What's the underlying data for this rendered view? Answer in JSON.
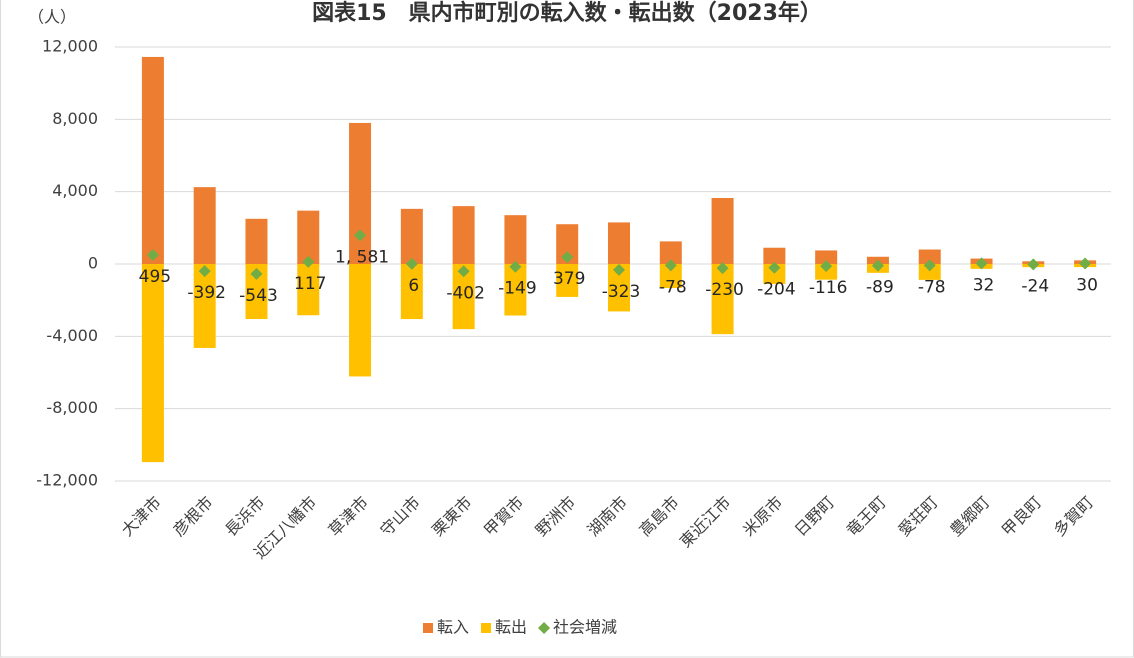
{
  "chart_data": {
    "type": "bar",
    "stacked": true,
    "title": "図表15　県内市町別の転入数・転出数（2023年）",
    "y_label": "（人）",
    "categories": [
      "大津市",
      "彦根市",
      "長浜市",
      "近江八幡市",
      "草津市",
      "守山市",
      "栗東市",
      "甲賀市",
      "野洲市",
      "湖南市",
      "高島市",
      "東近江市",
      "米原市",
      "日野町",
      "竜王町",
      "愛荘町",
      "豊郷町",
      "甲良町",
      "多賀町"
    ],
    "series": [
      {
        "name": "転入",
        "type": "bar",
        "color": "#ed7d31",
        "values": [
          11450,
          4250,
          2500,
          2950,
          7800,
          3050,
          3200,
          2700,
          2200,
          2300,
          1250,
          3650,
          900,
          750,
          400,
          800,
          300,
          150,
          200
        ]
      },
      {
        "name": "転出",
        "type": "bar",
        "color": "#ffc000",
        "values": [
          -10955,
          -4642,
          -3043,
          -2833,
          -6219,
          -3044,
          -3602,
          -2849,
          -1821,
          -2623,
          -1328,
          -3880,
          -1104,
          -866,
          -489,
          -878,
          -268,
          -174,
          -170
        ]
      },
      {
        "name": "社会増減",
        "type": "scatter",
        "color": "#70ad47",
        "values": [
          495,
          -392,
          -543,
          117,
          1581,
          6,
          -402,
          -149,
          379,
          -323,
          -78,
          -230,
          -204,
          -116,
          -89,
          -78,
          32,
          -24,
          30
        ],
        "value_labels": [
          "495",
          "-392",
          "-543",
          "117",
          "1, 581",
          "6",
          "-402",
          "-149",
          "379",
          "-323",
          "-78",
          "-230",
          "-204",
          "-116",
          "-89",
          "-78",
          "32",
          "-24",
          "30"
        ]
      }
    ],
    "ylim": [
      -12000,
      12000
    ],
    "yticks": [
      {
        "value": -12000,
        "label": "-12,000"
      },
      {
        "value": -8000,
        "label": "-8,000"
      },
      {
        "value": -4000,
        "label": "-4,000"
      },
      0,
      {
        "value": 4000,
        "label": "4,000"
      },
      {
        "value": 8000,
        "label": "8,000"
      },
      {
        "value": 12000,
        "label": "12,000"
      }
    ],
    "grid": true,
    "legend": "bottom"
  }
}
